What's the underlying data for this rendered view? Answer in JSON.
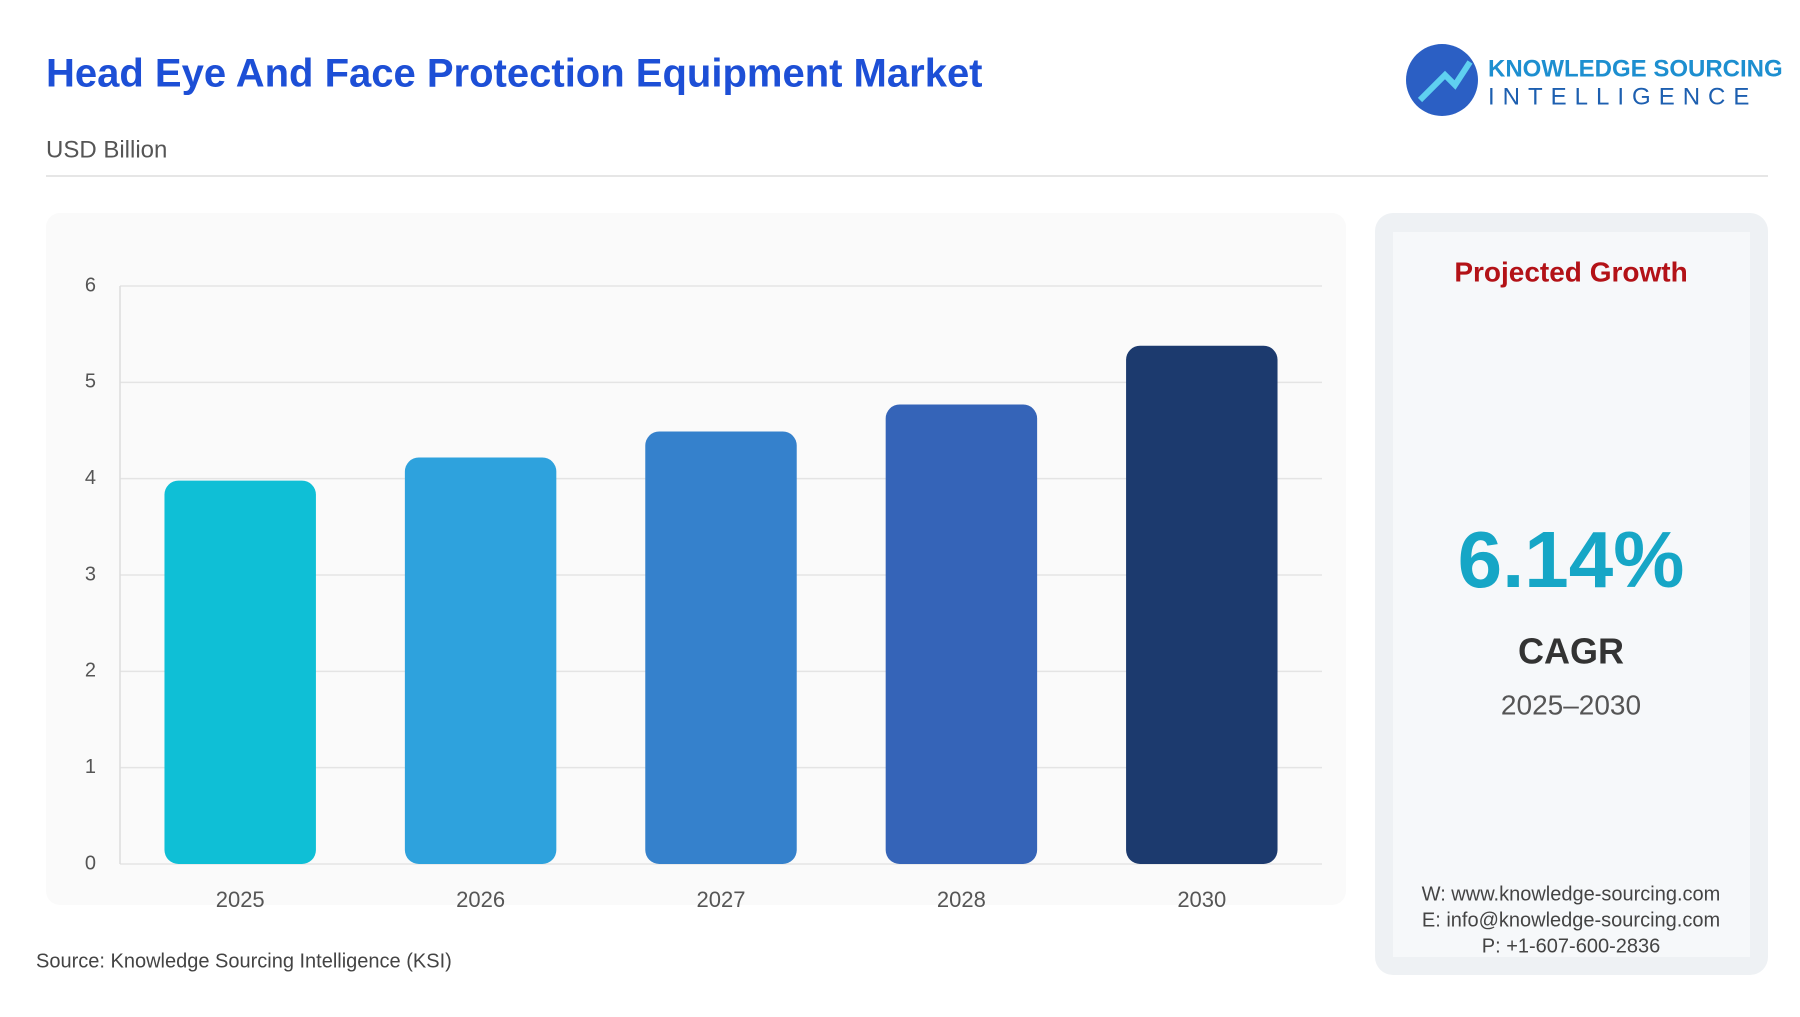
{
  "header": {
    "title": "Head Eye And Face Protection Equipment Market",
    "subtitle": "USD Billion",
    "logo_line1": "KNOWLEDGE SOURCING",
    "logo_line2": "INTELLIGENCE"
  },
  "chart_data": {
    "type": "bar",
    "categories": [
      "2025",
      "2026",
      "2027",
      "2028",
      "2030"
    ],
    "values": [
      3.98,
      4.22,
      4.49,
      4.77,
      5.38
    ],
    "colors": [
      "#0fbfd6",
      "#2ea2dd",
      "#3581cc",
      "#3564b8",
      "#1c3a6e"
    ],
    "ylim": [
      0,
      6
    ],
    "yticks": [
      0,
      1,
      2,
      3,
      4,
      5,
      6
    ],
    "grid": true
  },
  "card": {
    "heading": "Projected Growth",
    "cagr": "6.14%",
    "cagr_label": "CAGR",
    "period": "2025–2030",
    "contacts": [
      "W: www.knowledge-sourcing.com",
      "E: info@knowledge-sourcing.com",
      "P: +1-607-600-2836"
    ]
  },
  "footer": {
    "source": "Source: Knowledge Sourcing Intelligence (KSI)"
  }
}
